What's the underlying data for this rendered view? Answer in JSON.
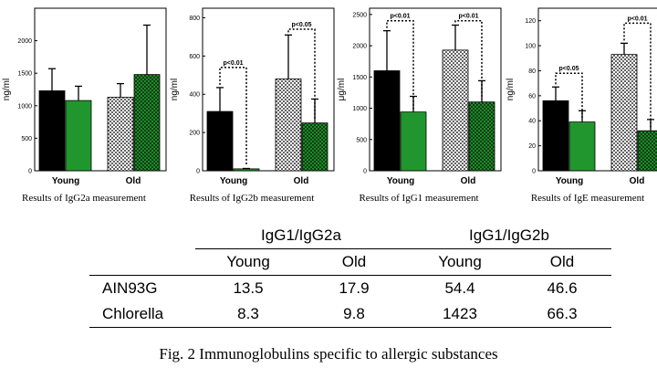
{
  "chart_data": [
    {
      "type": "bar",
      "title": "",
      "caption": "Results of IgG2a measurement",
      "ylabel": "ng/ml",
      "ylim": [
        0,
        2500
      ],
      "yticks": [
        0,
        500,
        1000,
        1500,
        2000
      ],
      "groups": [
        "Young",
        "Old"
      ],
      "series": [
        {
          "name": "AIN93G",
          "group": "Young",
          "pattern": "black",
          "value": 1230,
          "error": 340
        },
        {
          "name": "Chlorella",
          "group": "Young",
          "pattern": "green",
          "value": 1080,
          "error": 220
        },
        {
          "name": "AIN93G",
          "group": "Old",
          "pattern": "dots",
          "value": 1130,
          "error": 210
        },
        {
          "name": "Chlorella",
          "group": "Old",
          "pattern": "check",
          "value": 1480,
          "error": 760
        }
      ],
      "annotations": []
    },
    {
      "type": "bar",
      "title": "",
      "caption": "Results of IgG2b measurement",
      "ylabel": "ng/ml",
      "ylim": [
        0,
        850
      ],
      "yticks": [
        0,
        200,
        400,
        600,
        800
      ],
      "groups": [
        "Young",
        "Old"
      ],
      "series": [
        {
          "name": "AIN93G",
          "group": "Young",
          "pattern": "black",
          "value": 310,
          "error": 125
        },
        {
          "name": "Chlorella",
          "group": "Young",
          "pattern": "green",
          "value": 10,
          "error": 2
        },
        {
          "name": "AIN93G",
          "group": "Old",
          "pattern": "dots",
          "value": 480,
          "error": 230
        },
        {
          "name": "Chlorella",
          "group": "Old",
          "pattern": "check",
          "value": 250,
          "error": 125
        }
      ],
      "annotations": [
        {
          "text": "p<0.01",
          "bars": [
            0,
            1
          ],
          "y": 540
        },
        {
          "text": "p<0.05",
          "bars": [
            2,
            3
          ],
          "y": 740
        }
      ]
    },
    {
      "type": "bar",
      "title": "",
      "caption": "Results of IgG1 measurement",
      "ylabel": "μg/ml",
      "ylim": [
        0,
        2600
      ],
      "yticks": [
        0,
        500,
        1000,
        1500,
        2000,
        2500
      ],
      "groups": [
        "Young",
        "Old"
      ],
      "series": [
        {
          "name": "AIN93G",
          "group": "Young",
          "pattern": "black",
          "value": 1600,
          "error": 640
        },
        {
          "name": "Chlorella",
          "group": "Young",
          "pattern": "green",
          "value": 940,
          "error": 250
        },
        {
          "name": "AIN93G",
          "group": "Old",
          "pattern": "dots",
          "value": 1930,
          "error": 400
        },
        {
          "name": "Chlorella",
          "group": "Old",
          "pattern": "check",
          "value": 1100,
          "error": 340
        }
      ],
      "annotations": [
        {
          "text": "p<0.01",
          "bars": [
            0,
            1
          ],
          "y": 2400
        },
        {
          "text": "p<0.01",
          "bars": [
            2,
            3
          ],
          "y": 2400
        }
      ]
    },
    {
      "type": "bar",
      "title": "",
      "caption": "Results of IgE measurement",
      "ylabel": "ng/ml",
      "ylim": [
        0,
        130
      ],
      "yticks": [
        0,
        20,
        40,
        60,
        80,
        100,
        120
      ],
      "groups": [
        "Young",
        "Old"
      ],
      "series": [
        {
          "name": "AIN93G",
          "group": "Young",
          "pattern": "black",
          "value": 56,
          "error": 11
        },
        {
          "name": "Chlorella",
          "group": "Young",
          "pattern": "green",
          "value": 39,
          "error": 9
        },
        {
          "name": "AIN93G",
          "group": "Old",
          "pattern": "dots",
          "value": 93,
          "error": 9
        },
        {
          "name": "Chlorella",
          "group": "Old",
          "pattern": "check",
          "value": 32,
          "error": 9
        }
      ],
      "annotations": [
        {
          "text": "p<0.05",
          "bars": [
            0,
            1
          ],
          "y": 78
        },
        {
          "text": "p<0.01",
          "bars": [
            2,
            3
          ],
          "y": 118
        }
      ]
    }
  ],
  "table": {
    "group1": "IgG1/IgG2a",
    "group2": "IgG1/IgG2b",
    "sub": [
      "Young",
      "Old",
      "Young",
      "Old"
    ],
    "rows": [
      {
        "label": "AIN93G",
        "values": [
          "13.5",
          "17.9",
          "54.4",
          "46.6"
        ]
      },
      {
        "label": "Chlorella",
        "values": [
          "8.3",
          "9.8",
          "1423",
          "66.3"
        ]
      }
    ]
  },
  "caption": "Fig. 2 Immunoglobulins specific to allergic substances",
  "colors": {
    "green": "#22962e",
    "black": "#000000"
  }
}
